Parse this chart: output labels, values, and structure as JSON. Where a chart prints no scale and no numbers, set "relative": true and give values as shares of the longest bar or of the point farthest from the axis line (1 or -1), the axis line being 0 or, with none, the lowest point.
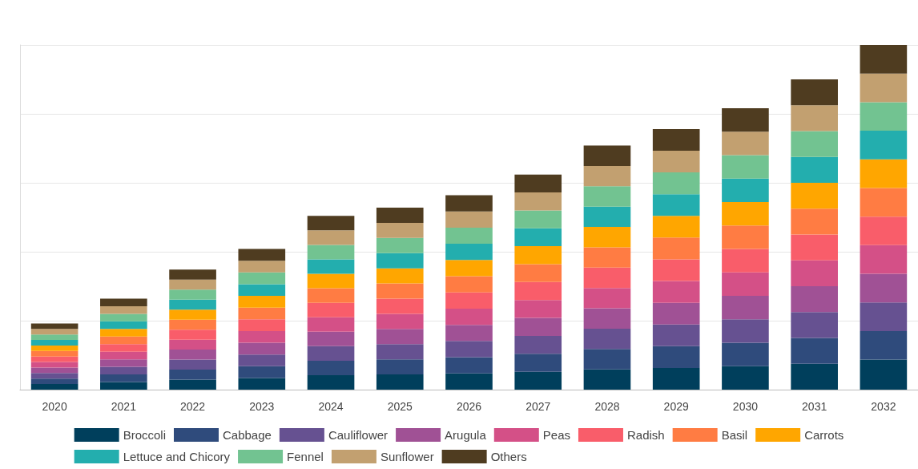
{
  "chart_data": {
    "type": "bar",
    "stacked": true,
    "relative": true,
    "grid": "y",
    "legend": "bottom",
    "categories": [
      "2020",
      "2021",
      "2022",
      "2023",
      "2024",
      "2025",
      "2026",
      "2027",
      "2028",
      "2029",
      "2030",
      "2031",
      "2032"
    ],
    "series": [
      {
        "name": "Broccoli",
        "color": "#003f5c",
        "values": [
          0.016,
          0.022,
          0.029,
          0.034,
          0.042,
          0.044,
          0.047,
          0.052,
          0.059,
          0.063,
          0.068,
          0.075,
          0.087
        ]
      },
      {
        "name": "Cabbage",
        "color": "#2f4b7c",
        "values": [
          0.016,
          0.022,
          0.029,
          0.034,
          0.042,
          0.044,
          0.047,
          0.052,
          0.059,
          0.063,
          0.068,
          0.075,
          0.083
        ]
      },
      {
        "name": "Cauliflower",
        "color": "#665191",
        "values": [
          0.016,
          0.022,
          0.029,
          0.034,
          0.042,
          0.044,
          0.047,
          0.052,
          0.059,
          0.063,
          0.068,
          0.075,
          0.083
        ]
      },
      {
        "name": "Arugula",
        "color": "#a05195",
        "values": [
          0.016,
          0.022,
          0.029,
          0.034,
          0.042,
          0.044,
          0.047,
          0.052,
          0.059,
          0.063,
          0.068,
          0.075,
          0.083
        ]
      },
      {
        "name": "Peas",
        "color": "#d45087",
        "values": [
          0.016,
          0.022,
          0.029,
          0.034,
          0.042,
          0.044,
          0.047,
          0.052,
          0.059,
          0.063,
          0.068,
          0.075,
          0.083
        ]
      },
      {
        "name": "Radish",
        "color": "#f95d6a",
        "values": [
          0.016,
          0.022,
          0.029,
          0.034,
          0.042,
          0.044,
          0.047,
          0.052,
          0.059,
          0.063,
          0.068,
          0.075,
          0.083
        ]
      },
      {
        "name": "Basil",
        "color": "#ff7c43",
        "values": [
          0.016,
          0.022,
          0.029,
          0.034,
          0.042,
          0.044,
          0.047,
          0.052,
          0.059,
          0.063,
          0.068,
          0.075,
          0.083
        ]
      },
      {
        "name": "Carrots",
        "color": "#ffa600",
        "values": [
          0.016,
          0.022,
          0.029,
          0.034,
          0.042,
          0.044,
          0.047,
          0.052,
          0.059,
          0.063,
          0.068,
          0.075,
          0.083
        ]
      },
      {
        "name": "Lettuce and Chicory",
        "color": "#23aeae",
        "values": [
          0.016,
          0.022,
          0.029,
          0.034,
          0.042,
          0.044,
          0.047,
          0.052,
          0.059,
          0.063,
          0.068,
          0.075,
          0.083
        ]
      },
      {
        "name": "Fennel",
        "color": "#72c391",
        "values": [
          0.016,
          0.022,
          0.029,
          0.034,
          0.042,
          0.044,
          0.047,
          0.052,
          0.059,
          0.063,
          0.068,
          0.075,
          0.083
        ]
      },
      {
        "name": "Sunflower",
        "color": "#c2a070",
        "values": [
          0.016,
          0.022,
          0.029,
          0.034,
          0.042,
          0.044,
          0.047,
          0.052,
          0.059,
          0.063,
          0.068,
          0.075,
          0.083
        ]
      },
      {
        "name": "Others",
        "color": "#4f3c20",
        "values": [
          0.016,
          0.022,
          0.029,
          0.034,
          0.042,
          0.044,
          0.047,
          0.052,
          0.059,
          0.063,
          0.068,
          0.075,
          0.083
        ]
      }
    ]
  }
}
